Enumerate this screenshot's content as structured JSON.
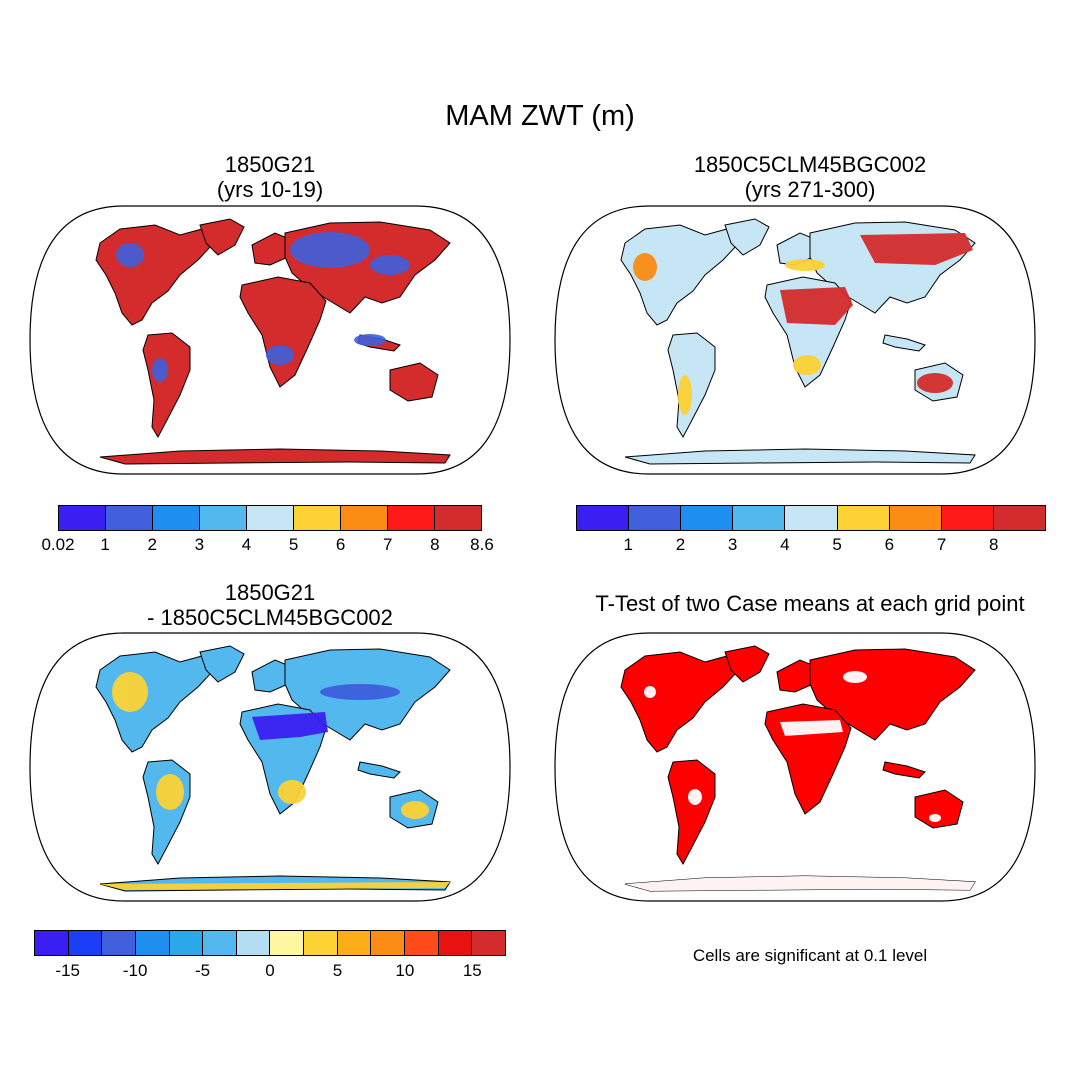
{
  "title": "MAM ZWT (m)",
  "panels": {
    "p1": {
      "title1": "1850G21",
      "title2": "(yrs 10-19)"
    },
    "p2": {
      "title1": "1850C5CLM45BGC002",
      "title2": "(yrs 271-300)"
    },
    "p3": {
      "title1": "1850G21",
      "title2": "- 1850C5CLM45BGC002"
    },
    "p4": {
      "title1": "T-Test of two Case means at each grid point"
    }
  },
  "colorbars": {
    "cb1": {
      "colors": [
        "#3b1ff2",
        "#3f5fdc",
        "#1e8ff0",
        "#52b8ee",
        "#c6e6f5",
        "#fcd235",
        "#fb8c14",
        "#ff1a1a",
        "#d42c2c"
      ],
      "labels": [
        "0.02",
        "1",
        "2",
        "3",
        "4",
        "5",
        "6",
        "7",
        "8",
        "8.6"
      ]
    },
    "cb2": {
      "colors": [
        "#3b1ff2",
        "#3f5fdc",
        "#1e8ff0",
        "#52b8ee",
        "#c6e6f5",
        "#fcd235",
        "#fb8c14",
        "#ff1a1a",
        "#d42c2c"
      ],
      "labels": [
        "1",
        "2",
        "3",
        "4",
        "5",
        "6",
        "7",
        "8"
      ]
    },
    "cb3": {
      "colors": [
        "#3b1ff2",
        "#1c3ef4",
        "#3f5fdc",
        "#1e8ff0",
        "#2aa8e8",
        "#52b8ee",
        "#b3ddf3",
        "#fff6a0",
        "#fcd235",
        "#fbae18",
        "#fb8c14",
        "#ff4a1a",
        "#e81212",
        "#d42c2c"
      ],
      "labels": [
        "-15",
        "-10",
        "-5",
        "0",
        "5",
        "10",
        "15"
      ]
    }
  },
  "note": "Cells are significant at 0.1 level",
  "palettes": {
    "p1_land": "#d42c2c",
    "p2_land": "#c6e6f5",
    "p3_land": "#52b8ee",
    "p4_land": "#ff0000"
  }
}
